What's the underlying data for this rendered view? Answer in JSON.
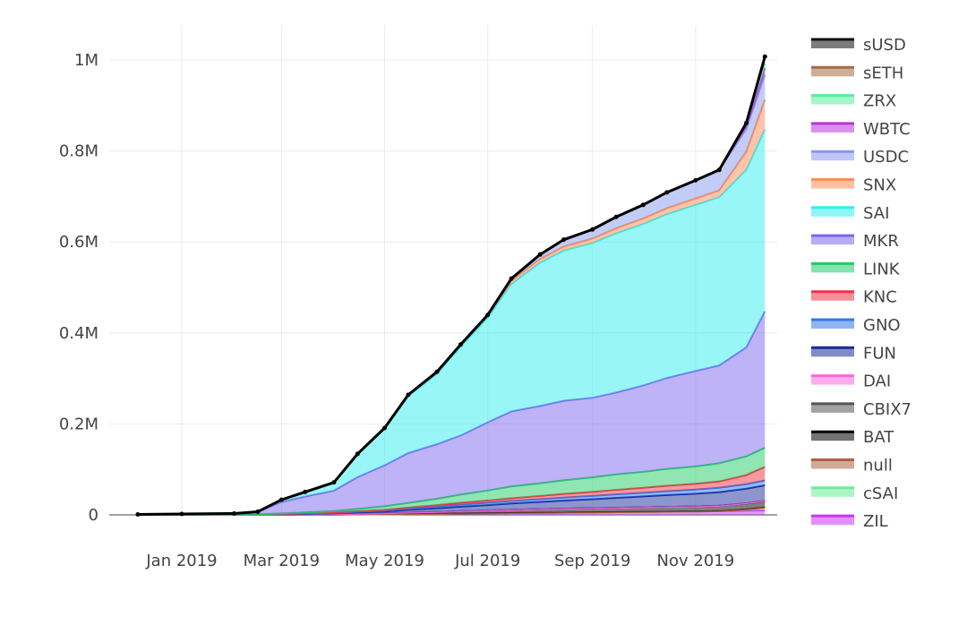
{
  "chart_data": {
    "type": "area",
    "stacked": true,
    "title": "",
    "xlabel": "",
    "ylabel": "",
    "x": [
      "2018-12-06",
      "2019-01-01",
      "2019-02-01",
      "2019-02-15",
      "2019-03-01",
      "2019-03-15",
      "2019-04-01",
      "2019-04-15",
      "2019-05-01",
      "2019-05-15",
      "2019-06-01",
      "2019-06-15",
      "2019-07-01",
      "2019-07-15",
      "2019-08-01",
      "2019-08-15",
      "2019-09-01",
      "2019-09-15",
      "2019-10-01",
      "2019-10-15",
      "2019-11-01",
      "2019-11-15",
      "2019-12-01",
      "2019-12-12"
    ],
    "x_ticks": [
      "Jan 2019",
      "Mar 2019",
      "May 2019",
      "Jul 2019",
      "Sep 2019",
      "Nov 2019"
    ],
    "y_ticks": [
      "0",
      "0.2M",
      "0.4M",
      "0.6M",
      "0.8M",
      "1M"
    ],
    "ylim": [
      0,
      1080000
    ],
    "grid": true,
    "legend_position": "right",
    "series": [
      {
        "name": "ZIL",
        "color": "#cc33ff",
        "values": [
          0,
          0,
          0,
          0,
          0,
          0,
          500,
          1000,
          1500,
          2000,
          2500,
          3000,
          3500,
          4000,
          4500,
          5000,
          5500,
          6000,
          6500,
          7000,
          7500,
          8000,
          9000,
          10000
        ]
      },
      {
        "name": "cSAI",
        "color": "#66ee99",
        "values": [
          0,
          0,
          0,
          0,
          0,
          0,
          0,
          0,
          0,
          0,
          0,
          0,
          0,
          0,
          0,
          0,
          0,
          0,
          0,
          0,
          0,
          0,
          3000,
          6000
        ]
      },
      {
        "name": "null",
        "color": "#b06040",
        "values": [
          0,
          0,
          0,
          0,
          0,
          0,
          0,
          0,
          0,
          0,
          0,
          0,
          0,
          0,
          0,
          0,
          0,
          0,
          0,
          0,
          0,
          0,
          0,
          0
        ]
      },
      {
        "name": "BAT",
        "color": "#000000",
        "values": [
          0,
          0,
          0,
          0,
          500,
          700,
          1000,
          1500,
          2000,
          3000,
          4000,
          5000,
          6000,
          7000,
          8000,
          8500,
          9000,
          9500,
          10000,
          10500,
          11000,
          12000,
          13000,
          14000
        ]
      },
      {
        "name": "CBIX7",
        "color": "#555555",
        "values": [
          0,
          0,
          0,
          0,
          0,
          0,
          0,
          0,
          0,
          0,
          0,
          0,
          0,
          0,
          0,
          0,
          0,
          0,
          0,
          0,
          0,
          0,
          0,
          0
        ]
      },
      {
        "name": "DAI",
        "color": "#ff66dd",
        "values": [
          0,
          0,
          0,
          0,
          0,
          0,
          0,
          0,
          0,
          0,
          0,
          0,
          0,
          0,
          0,
          0,
          0,
          0,
          0,
          0,
          0,
          0,
          500,
          1000
        ]
      },
      {
        "name": "FUN",
        "color": "#1a2b99",
        "values": [
          0,
          0,
          0,
          500,
          1000,
          1500,
          2000,
          3000,
          4000,
          6000,
          8000,
          10000,
          12000,
          14000,
          16000,
          18000,
          20000,
          22000,
          24000,
          26000,
          28000,
          30000,
          32000,
          34000
        ]
      },
      {
        "name": "GNO",
        "color": "#3377ee",
        "values": [
          0,
          0,
          0,
          0,
          500,
          700,
          1000,
          1500,
          2000,
          3000,
          4000,
          4500,
          5000,
          5500,
          6000,
          6500,
          7000,
          7500,
          8000,
          8500,
          9000,
          9500,
          10000,
          10500
        ]
      },
      {
        "name": "KNC",
        "color": "#ee3344",
        "values": [
          0,
          0,
          0,
          0,
          300,
          500,
          800,
          1000,
          1500,
          2000,
          3000,
          4000,
          5000,
          6000,
          7000,
          8000,
          9000,
          10000,
          11000,
          12000,
          13000,
          14000,
          20000,
          30000
        ]
      },
      {
        "name": "LINK",
        "color": "#22cc66",
        "values": [
          0,
          0,
          0,
          500,
          1000,
          2000,
          3000,
          5000,
          8000,
          10000,
          14000,
          18000,
          22000,
          26000,
          28000,
          30000,
          32000,
          34000,
          35000,
          37000,
          38000,
          40000,
          41000,
          42000
        ]
      },
      {
        "name": "MKR",
        "color": "#7b68ee",
        "values": [
          1000,
          2000,
          3000,
          6000,
          25000,
          35000,
          45000,
          70000,
          90000,
          110000,
          120000,
          130000,
          150000,
          165000,
          170000,
          175000,
          175000,
          180000,
          190000,
          200000,
          210000,
          215000,
          240000,
          300000
        ]
      },
      {
        "name": "SAI",
        "color": "#33eeee",
        "values": [
          0,
          0,
          0,
          0,
          5000,
          10000,
          18000,
          50000,
          80000,
          125000,
          155000,
          195000,
          230000,
          280000,
          315000,
          330000,
          340000,
          350000,
          355000,
          360000,
          365000,
          370000,
          390000,
          400000
        ]
      },
      {
        "name": "SNX",
        "color": "#ff8c55",
        "values": [
          0,
          0,
          0,
          0,
          0,
          0,
          0,
          1000,
          2000,
          3000,
          4000,
          5000,
          6000,
          7000,
          8000,
          9000,
          10000,
          11000,
          12000,
          13000,
          14000,
          15000,
          40000,
          65000
        ]
      },
      {
        "name": "USDC",
        "color": "#8899ee",
        "values": [
          0,
          0,
          0,
          0,
          0,
          0,
          0,
          0,
          0,
          0,
          0,
          0,
          0,
          5000,
          10000,
          15000,
          20000,
          25000,
          30000,
          35000,
          40000,
          45000,
          50000,
          55000
        ]
      },
      {
        "name": "WBTC",
        "color": "#bb33dd",
        "values": [
          0,
          0,
          0,
          0,
          0,
          0,
          0,
          0,
          0,
          0,
          0,
          0,
          0,
          0,
          0,
          0,
          0,
          0,
          0,
          0,
          0,
          0,
          8000,
          15000
        ]
      },
      {
        "name": "ZRX",
        "color": "#55ee99",
        "values": [
          0,
          0,
          0,
          0,
          0,
          0,
          0,
          0,
          0,
          0,
          0,
          0,
          0,
          0,
          0,
          0,
          0,
          0,
          0,
          0,
          0,
          0,
          5000,
          10000
        ]
      },
      {
        "name": "sETH",
        "color": "#a56b47",
        "values": [
          0,
          0,
          0,
          0,
          0,
          0,
          0,
          0,
          0,
          0,
          0,
          0,
          0,
          0,
          0,
          0,
          0,
          0,
          0,
          0,
          0,
          0,
          0,
          15000
        ]
      },
      {
        "name": "sUSD",
        "color": "#111111",
        "values": [
          0,
          0,
          0,
          0,
          0,
          0,
          0,
          0,
          0,
          0,
          0,
          0,
          0,
          0,
          0,
          0,
          0,
          0,
          0,
          0,
          0,
          0,
          0,
          0
        ]
      }
    ],
    "legend_order": [
      "sUSD",
      "sETH",
      "ZRX",
      "WBTC",
      "USDC",
      "SNX",
      "SAI",
      "MKR",
      "LINK",
      "KNC",
      "GNO",
      "FUN",
      "DAI",
      "CBIX7",
      "BAT",
      "null",
      "cSAI",
      "ZIL"
    ]
  }
}
